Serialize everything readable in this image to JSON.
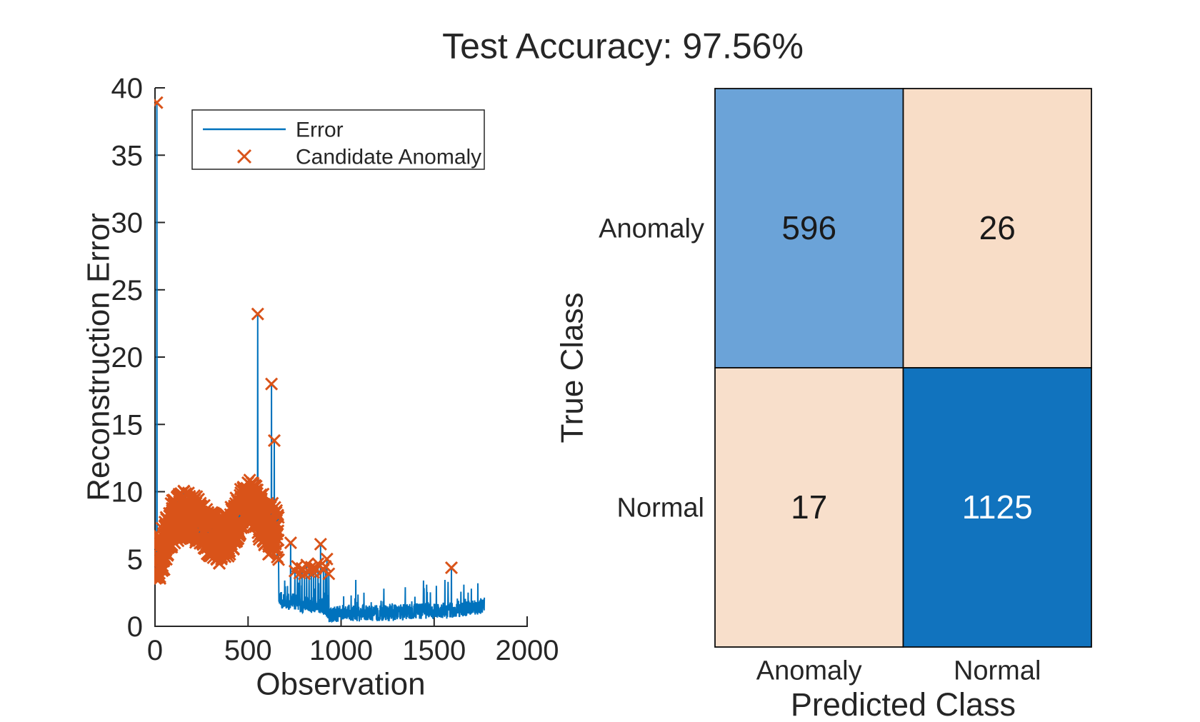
{
  "figure": {
    "title": "Test Accuracy: 97.56%",
    "background": "#ffffff",
    "text_color": "#262626",
    "axis_color": "#262626"
  },
  "chart_data": [
    {
      "type": "line",
      "name": "reconstruction-error-plot",
      "xlabel": "Observation",
      "ylabel": "Reconstruction Error",
      "xlim": [
        0,
        2000
      ],
      "ylim": [
        0,
        40
      ],
      "x_tick_labels": [
        "0",
        "500",
        "1000",
        "1500",
        "2000"
      ],
      "y_tick_labels": [
        "0",
        "5",
        "10",
        "15",
        "20",
        "25",
        "30",
        "35",
        "40"
      ],
      "grid": "off",
      "legend": {
        "position": "northwest",
        "border_color": "#262626",
        "items": [
          {
            "label": "Error",
            "marker": "line",
            "color": "#0072BD"
          },
          {
            "label": "Candidate Anomaly",
            "marker": "x",
            "color": "#D95319"
          }
        ]
      },
      "series": {
        "name": "Error",
        "color": "#0072BD",
        "line_width": 2,
        "n_points": 1770,
        "seed": 42,
        "base_keypoints_dense": [
          [
            0,
            4.6
          ],
          [
            40,
            5.6
          ],
          [
            100,
            7.9
          ],
          [
            160,
            8.3
          ],
          [
            220,
            8.0
          ],
          [
            280,
            7.0
          ],
          [
            360,
            6.2
          ],
          [
            420,
            7.3
          ],
          [
            470,
            8.8
          ],
          [
            525,
            9.2
          ],
          [
            558,
            8.2
          ],
          [
            600,
            7.4
          ],
          [
            640,
            7.1
          ],
          [
            664,
            6.3
          ]
        ],
        "base_keypoints_post": [
          [
            665,
            2.1
          ],
          [
            700,
            1.8
          ],
          [
            740,
            1.9
          ],
          [
            790,
            1.6
          ],
          [
            850,
            1.6
          ],
          [
            905,
            1.5
          ],
          [
            935,
            0.85
          ],
          [
            965,
            0.8
          ],
          [
            1010,
            1.05
          ],
          [
            1120,
            0.95
          ],
          [
            1260,
            1.0
          ],
          [
            1400,
            1.1
          ],
          [
            1465,
            1.2
          ],
          [
            1530,
            1.1
          ],
          [
            1600,
            1.25
          ],
          [
            1670,
            1.3
          ],
          [
            1720,
            1.45
          ],
          [
            1770,
            1.55
          ]
        ],
        "dense_until": 664,
        "noise_amp_dense_early": 1.8,
        "noise_amp_dense_late": 2.1,
        "noise_amp_post": 0.62,
        "tail_prob": 0.04,
        "tail_amp": 1.3,
        "clamp_min_dense": 3.42,
        "clamp_min_post": 0.3,
        "spikes": {
          "10": 38.9,
          "552": 23.2,
          "626": 18.0,
          "641": 13.8,
          "697": 3.4,
          "712": 3.0,
          "729": 6.2,
          "752": 4.1,
          "765": 4.45,
          "778": 3.95,
          "790": 4.3,
          "803": 3.9,
          "815": 4.55,
          "828": 4.05,
          "840": 4.4,
          "852": 4.0,
          "863": 4.3,
          "876": 4.65,
          "890": 6.1,
          "905": 4.2,
          "916": 4.45,
          "924": 5.0,
          "934": 3.9,
          "1079": 3.45,
          "1230": 2.8,
          "1345": 2.9,
          "1443": 3.4,
          "1460": 3.1,
          "1558": 3.45,
          "1575": 3.3,
          "1593": 4.35,
          "1660": 3.1,
          "1700": 2.8,
          "1735": 3.2
        }
      },
      "anomaly_markers": {
        "name": "Candidate Anomaly",
        "color": "#D95319",
        "marker": "x",
        "size": 16,
        "stroke_width": 3,
        "rule": {
          "dense_until": 664,
          "dense_threshold": 3.45,
          "post_threshold": 3.85
        }
      }
    },
    {
      "type": "heatmap",
      "name": "confusion-matrix",
      "xlabel": "Predicted Class",
      "ylabel": "True Class",
      "row_labels": [
        "Anomaly",
        "Normal"
      ],
      "col_labels": [
        "Anomaly",
        "Normal"
      ],
      "matrix": [
        [
          596,
          26
        ],
        [
          17,
          1125
        ]
      ],
      "border_color": "#0a0a0a",
      "cells": [
        [
          {
            "value": "596",
            "bg": "#6BA3D8",
            "fg": "#1a1a1a"
          },
          {
            "value": "26",
            "bg": "#F8DDC7",
            "fg": "#1a1a1a"
          }
        ],
        [
          {
            "value": "17",
            "bg": "#F8DFCB",
            "fg": "#1a1a1a"
          },
          {
            "value": "1125",
            "bg": "#1173BE",
            "fg": "#ffffff"
          }
        ]
      ]
    }
  ]
}
